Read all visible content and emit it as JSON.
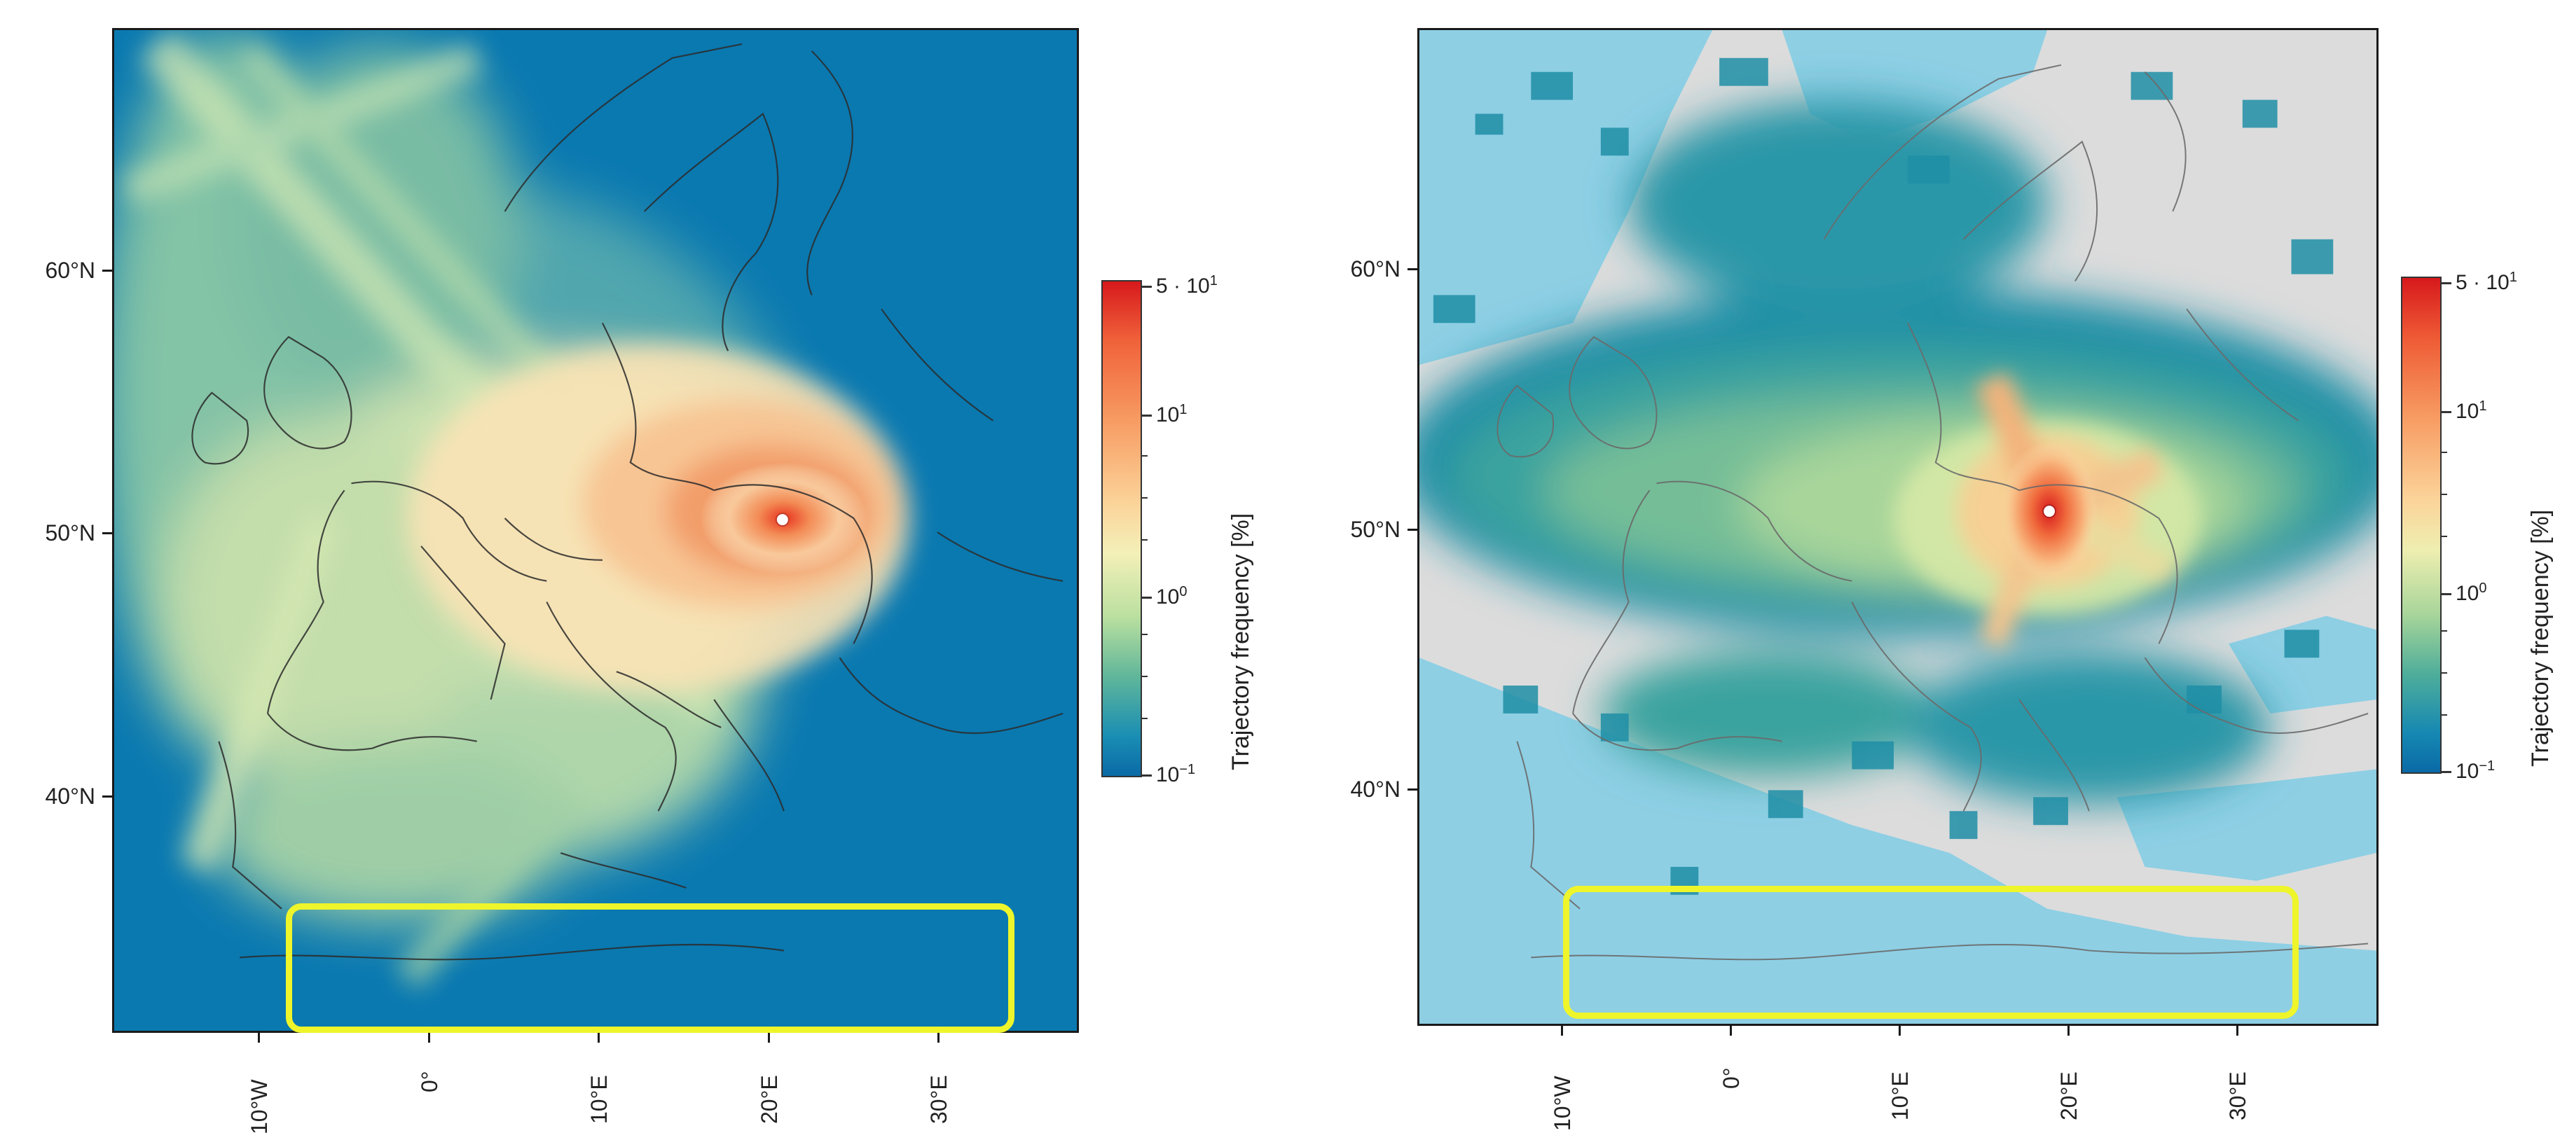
{
  "maps": [
    {
      "id": "left",
      "lat_labels": [
        "60°N",
        "50°N",
        "40°N"
      ],
      "lon_labels": [
        "10°W",
        "0°",
        "10°E",
        "20°E",
        "30°E"
      ],
      "colorbar": {
        "title": "Trajectory frequency [%]",
        "tick_top": "5 · 10",
        "tick_top_exp": "1",
        "tick_mid_upper": "10",
        "tick_mid_upper_exp": "1",
        "tick_mid_lower": "10",
        "tick_mid_lower_exp": "0",
        "tick_bottom": "10",
        "tick_bottom_exp": "−1"
      },
      "colors": {
        "ocean": "#0a79b0",
        "land_outline": "#2b2b2b",
        "receptor": "#ffffff"
      },
      "highlight_color": "#eef52a"
    },
    {
      "id": "right",
      "lat_labels": [
        "60°N",
        "50°N",
        "40°N"
      ],
      "lon_labels": [
        "10°W",
        "0°",
        "10°E",
        "20°E",
        "30°E"
      ],
      "colorbar": {
        "title": "Trajectory frequency [%]",
        "tick_top": "5 · 10",
        "tick_top_exp": "1",
        "tick_mid_upper": "10",
        "tick_mid_upper_exp": "1",
        "tick_mid_lower": "10",
        "tick_mid_lower_exp": "0",
        "tick_bottom": "10",
        "tick_bottom_exp": "−1"
      },
      "colors": {
        "ocean": "#8ecfe4",
        "land_background": "#dcdcdc",
        "land_outline": "#6a6a6a",
        "receptor": "#ffffff"
      },
      "highlight_color": "#eef52a"
    }
  ]
}
